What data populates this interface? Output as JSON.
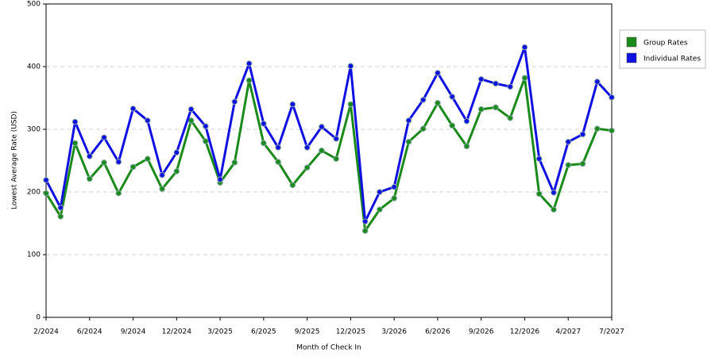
{
  "chart_data": {
    "type": "line",
    "x_label": "Month of Check In",
    "y_label": "Lowest Average Rate (USD)",
    "categories": [
      "2/2024",
      null,
      null,
      "6/2024",
      null,
      null,
      "9/2024",
      null,
      null,
      "12/2024",
      null,
      null,
      "3/2025",
      null,
      null,
      "6/2025",
      null,
      null,
      "9/2025",
      null,
      null,
      "12/2025",
      null,
      null,
      "3/2026",
      null,
      null,
      "6/2026",
      null,
      null,
      "9/2026",
      null,
      null,
      "12/2026",
      null,
      null,
      "4/2027",
      null,
      null,
      "7/2027"
    ],
    "series": [
      {
        "name": "Group Rates",
        "color": "#1a8a1a",
        "values": [
          198,
          161,
          278,
          221,
          247,
          198,
          240,
          253,
          205,
          233,
          314,
          281,
          215,
          247,
          378,
          278,
          248,
          211,
          239,
          266,
          253,
          340,
          138,
          172,
          190,
          280,
          301,
          342,
          306,
          273,
          332,
          335,
          318,
          382,
          197,
          172,
          243,
          245,
          301,
          298
        ]
      },
      {
        "name": "Individual Rates",
        "color": "#1010e0",
        "values": [
          219,
          175,
          312,
          257,
          287,
          248,
          333,
          314,
          227,
          263,
          332,
          305,
          220,
          344,
          405,
          309,
          271,
          340,
          271,
          304,
          285,
          401,
          153,
          200,
          208,
          314,
          347,
          390,
          352,
          313,
          380,
          373,
          368,
          431,
          253,
          199,
          280,
          292,
          376,
          351
        ]
      }
    ],
    "ylim": [
      0,
      500
    ],
    "yticks": [
      0,
      100,
      200,
      300,
      400,
      500
    ],
    "grid": true,
    "legend": "right"
  }
}
